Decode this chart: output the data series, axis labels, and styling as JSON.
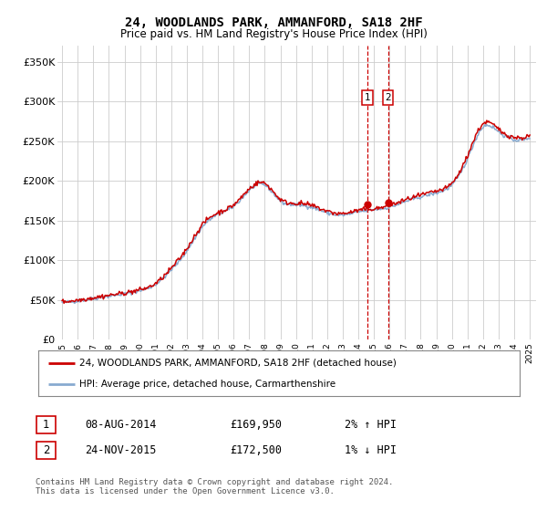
{
  "title": "24, WOODLANDS PARK, AMMANFORD, SA18 2HF",
  "subtitle": "Price paid vs. HM Land Registry's House Price Index (HPI)",
  "legend_line1": "24, WOODLANDS PARK, AMMANFORD, SA18 2HF (detached house)",
  "legend_line2": "HPI: Average price, detached house, Carmarthenshire",
  "annotation1_date": "08-AUG-2014",
  "annotation1_price": "£169,950",
  "annotation1_hpi": "2% ↑ HPI",
  "annotation2_date": "24-NOV-2015",
  "annotation2_price": "£172,500",
  "annotation2_hpi": "1% ↓ HPI",
  "footer": "Contains HM Land Registry data © Crown copyright and database right 2024.\nThis data is licensed under the Open Government Licence v3.0.",
  "vline1_x": 2014.6,
  "vline2_x": 2015.9,
  "sale1_x": 2014.6,
  "sale1_y": 169950,
  "sale2_x": 2015.9,
  "sale2_y": 172500,
  "line_color": "#cc0000",
  "hpi_color": "#88aad0",
  "background_color": "#ffffff",
  "grid_color": "#cccccc",
  "ylim": [
    0,
    370000
  ],
  "xlim_start": 1994.7,
  "xlim_end": 2025.4
}
